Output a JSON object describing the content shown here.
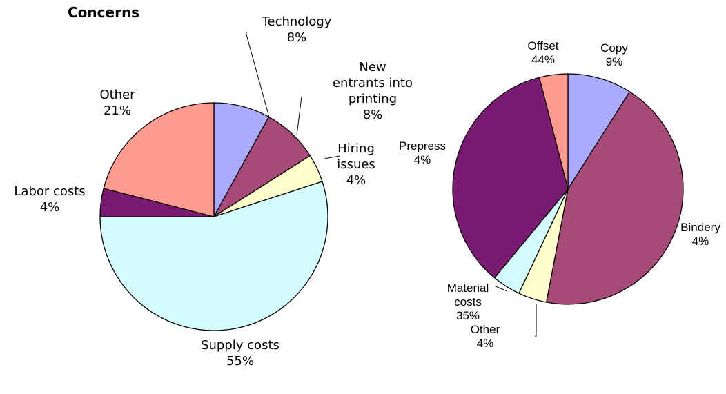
{
  "chart_data": [
    {
      "type": "pie",
      "title": "Concerns",
      "categories": [
        "Technology",
        "New entrants into printing",
        "Hiring issues",
        "Supply costs",
        "Labor costs",
        "Other"
      ],
      "values": [
        8,
        8,
        4,
        55,
        4,
        21
      ],
      "value_labels": [
        "8%",
        "8%",
        "4%",
        "55%",
        "4%",
        "21%"
      ],
      "colors": [
        "#aaaaff",
        "#a84a78",
        "#ffffcc",
        "#d4fcfc",
        "#7b1a72",
        "#ff9a8e"
      ]
    },
    {
      "type": "pie",
      "categories": [
        "Copy",
        "Offset",
        "Prepress",
        "Bindery",
        "Material costs",
        "Other"
      ],
      "values": [
        9,
        44,
        4,
        4,
        35,
        4
      ],
      "value_labels": [
        "9%",
        "44%",
        "4%",
        "4%",
        "35%",
        "4%"
      ],
      "colors": [
        "#aaaaff",
        "#a84a78",
        "#ffffcc",
        "#d4fcfc",
        "#7b1a72",
        "#ff9a8e"
      ]
    }
  ]
}
